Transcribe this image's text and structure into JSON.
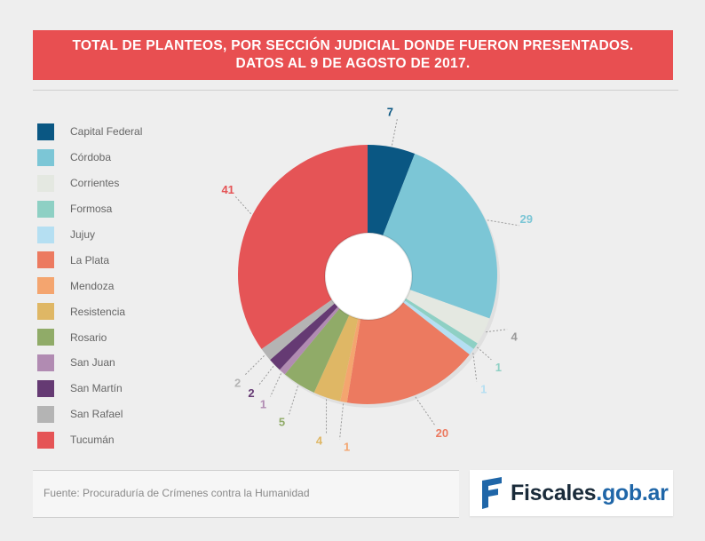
{
  "header": {
    "line1": "TOTAL DE PLANTEOS, POR SECCIÓN JUDICIAL DONDE FUERON PRESENTADOS.",
    "line2": "DATOS AL 9 DE AGOSTO DE 2017."
  },
  "source": "Fuente: Procuraduría de Crímenes contra la Humanidad",
  "logo": {
    "part1": "Fiscales",
    "part2": ".gob.ar",
    "icon": "fiscales-f-icon"
  },
  "chart_data": {
    "type": "pie",
    "title": "TOTAL DE PLANTEOS, POR SECCIÓN JUDICIAL DONDE FUERON PRESENTADOS. DATOS AL 9 DE AGOSTO DE 2017.",
    "legend_position": "left",
    "donut": true,
    "categories": [
      "Capital Federal",
      "Córdoba",
      "Corrientes",
      "Formosa",
      "Jujuy",
      "La Plata",
      "Mendoza",
      "Resistencia",
      "Rosario",
      "San Juan",
      "San Martín",
      "San Rafael",
      "Tucumán"
    ],
    "values": [
      7,
      29,
      4,
      1,
      1,
      20,
      1,
      4,
      5,
      1,
      2,
      2,
      41
    ],
    "colors": [
      "#0a5783",
      "#7cc6d6",
      "#e4e8e1",
      "#8ed0c4",
      "#b5dff2",
      "#ec7a60",
      "#f4a56f",
      "#dfb765",
      "#90ab68",
      "#b18bb2",
      "#653a73",
      "#b4b4b4",
      "#e55456"
    ]
  }
}
